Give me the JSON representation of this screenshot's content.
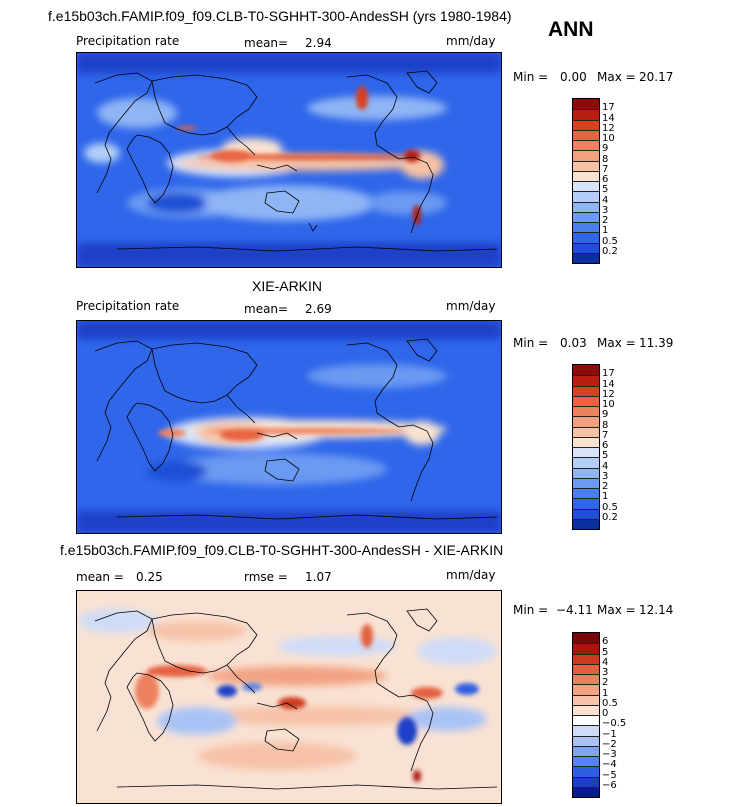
{
  "header": {
    "title": "f.e15b03ch.FAMIP.f09_f09.CLB-T0-SGHHT-300-AndesSH (yrs 1980-1984)",
    "season": "ANN"
  },
  "colors": {
    "land_outline": "#000000",
    "abs_scale": [
      "#0a2f9e",
      "#1f4fd6",
      "#2f66ea",
      "#4a7fef",
      "#6b9af2",
      "#8fb5f5",
      "#b3cef8",
      "#d7e4fa",
      "#f9e3d0",
      "#f7c2a3",
      "#f2a07e",
      "#ee8260",
      "#e8633f",
      "#d8411f",
      "#b81d10",
      "#8c0c08"
    ],
    "diff_scale": [
      "#061c86",
      "#1a3fc7",
      "#2d5fe2",
      "#5683ec",
      "#7fa4f1",
      "#a9c3f6",
      "#cfdcf8",
      "#ffffff",
      "#f9e2d3",
      "#f6c2a8",
      "#f2a282",
      "#ec815f",
      "#e3613f",
      "#cc3a1e",
      "#a8170c",
      "#7a0807"
    ]
  },
  "panels": [
    {
      "id": "model",
      "subtitle": "",
      "left_label": "Precipitation rate",
      "mean_label": "mean=",
      "mean_value": "2.94",
      "units": "mm/day",
      "min_label": "Min =",
      "min_value": "0.00",
      "max_label": "Max =",
      "max_value": "20.17",
      "levels": [
        "17",
        "14",
        "12",
        "10",
        "9",
        "8",
        "7",
        "6",
        "5",
        "4",
        "3",
        "2",
        "1",
        "0.5",
        "0.2"
      ]
    },
    {
      "id": "obs",
      "subtitle": "XIE-ARKIN",
      "left_label": "Precipitation rate",
      "mean_label": "mean=",
      "mean_value": "2.69",
      "units": "mm/day",
      "min_label": "Min =",
      "min_value": "0.03",
      "max_label": "Max =",
      "max_value": "11.39",
      "levels": [
        "17",
        "14",
        "12",
        "10",
        "9",
        "8",
        "7",
        "6",
        "5",
        "4",
        "3",
        "2",
        "1",
        "0.5",
        "0.2"
      ]
    },
    {
      "id": "diff",
      "subtitle": "f.e15b03ch.FAMIP.f09_f09.CLB-T0-SGHHT-300-AndesSH - XIE-ARKIN",
      "left_label": "mean =",
      "mean_value": "0.25",
      "rmse_label": "rmse =",
      "rmse_value": "1.07",
      "units": "mm/day",
      "min_label": "Min =",
      "min_value": "−4.11",
      "max_label": "Max =",
      "max_value": "12.14",
      "levels": [
        "6",
        "5",
        "4",
        "3",
        "2",
        "1",
        "0.5",
        "0",
        "−0.5",
        "−1",
        "−2",
        "−3",
        "−4",
        "−5",
        "−6"
      ]
    }
  ]
}
